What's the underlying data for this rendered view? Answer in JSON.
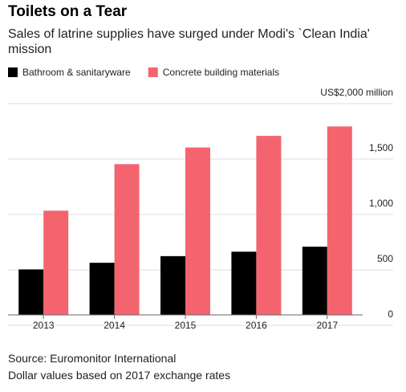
{
  "chart_data": {
    "type": "bar",
    "title": "Toilets on a Tear",
    "subtitle": "Sales of latrine supplies have surged under Modi's `Clean India' mission",
    "categories": [
      "2013",
      "2014",
      "2015",
      "2016",
      "2017"
    ],
    "series": [
      {
        "name": "Bathroom & sanitaryware",
        "color": "#000000",
        "values": [
          410,
          470,
          530,
          570,
          615
        ]
      },
      {
        "name": "Concrete building materials",
        "color": "#f4646f",
        "values": [
          940,
          1360,
          1510,
          1615,
          1700
        ]
      }
    ],
    "ylim": [
      0,
      2000
    ],
    "yticks": [
      0,
      500,
      {
        "value": 1000,
        "label": "1,000"
      },
      {
        "value": 1500,
        "label": "1,500"
      },
      {
        "value": 2000,
        "label": "US$2,000 million"
      }
    ],
    "grid": true,
    "source": "Source: Euromonitor International",
    "note": "Dollar values based on 2017 exchange rates"
  }
}
